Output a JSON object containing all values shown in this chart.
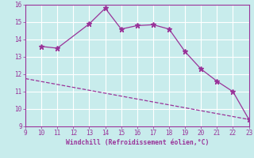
{
  "line1_x": [
    10,
    11,
    13,
    14,
    15,
    16,
    17,
    18,
    19,
    20,
    21,
    22,
    23
  ],
  "line1_y": [
    13.6,
    13.5,
    14.9,
    15.8,
    14.6,
    14.8,
    14.85,
    14.6,
    13.3,
    12.3,
    11.6,
    11.0,
    9.4
  ],
  "line2_x": [
    9,
    23
  ],
  "line2_y": [
    11.75,
    9.4
  ],
  "color": "#993399",
  "bg_color": "#c8ecec",
  "grid_color": "#ffffff",
  "xlabel": "Windchill (Refroidissement éolien,°C)",
  "xlim": [
    9,
    23
  ],
  "ylim": [
    9,
    16
  ],
  "xticks": [
    9,
    10,
    11,
    12,
    13,
    14,
    15,
    16,
    17,
    18,
    19,
    20,
    21,
    22,
    23
  ],
  "yticks": [
    9,
    10,
    11,
    12,
    13,
    14,
    15,
    16
  ]
}
